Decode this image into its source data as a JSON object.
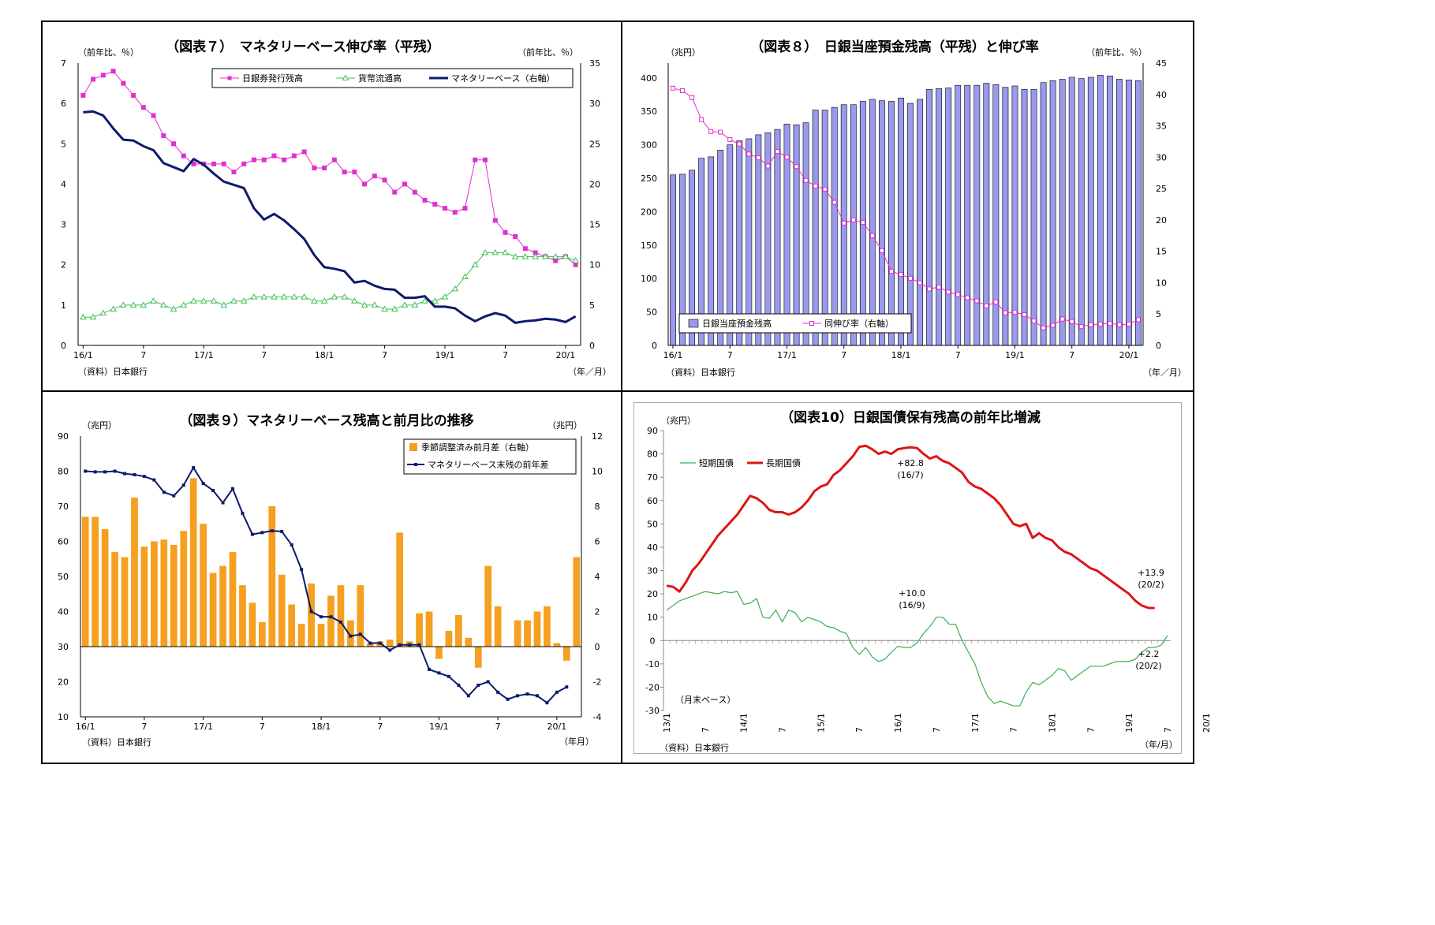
{
  "chart_data": [
    {
      "id": "fig7",
      "type": "line",
      "title": "（図表７）　マネタリーベース伸び率（平残）",
      "left_unit": "（前年比、％）",
      "right_unit": "（前年比、％）",
      "source": "（資料）日本銀行",
      "x_unit": "（年／月）",
      "x_tick_labels": [
        "16/1",
        "7",
        "17/1",
        "7",
        "18/1",
        "7",
        "19/1",
        "7",
        "20/1"
      ],
      "y_left_ticks": [
        "0",
        "1",
        "2",
        "3",
        "4",
        "5",
        "6",
        "7"
      ],
      "y_right_ticks": [
        "0",
        "5",
        "10",
        "15",
        "20",
        "25",
        "30",
        "35"
      ],
      "ylim_left": [
        0,
        7
      ],
      "ylim_right": [
        0,
        35
      ],
      "legend_position": "top-right",
      "series": [
        {
          "name": "日銀券発行残高",
          "axis": "left",
          "color": "#e030d0",
          "marker": "square",
          "values": [
            6.2,
            6.6,
            6.7,
            6.8,
            6.5,
            6.2,
            5.9,
            5.7,
            5.2,
            5.0,
            4.7,
            4.5,
            4.5,
            4.5,
            4.5,
            4.3,
            4.5,
            4.6,
            4.6,
            4.7,
            4.6,
            4.7,
            4.8,
            4.4,
            4.4,
            4.6,
            4.3,
            4.3,
            4.0,
            4.2,
            4.1,
            3.8,
            4.0,
            3.8,
            3.6,
            3.5,
            3.4,
            3.3,
            3.4,
            4.6,
            4.6,
            3.1,
            2.8,
            2.7,
            2.4,
            2.3,
            2.2,
            2.1,
            2.2,
            2.0
          ]
        },
        {
          "name": "貨幣流通高",
          "axis": "left",
          "color": "#3cc050",
          "marker": "triangle",
          "values": [
            0.7,
            0.7,
            0.8,
            0.9,
            1.0,
            1.0,
            1.0,
            1.1,
            1.0,
            0.9,
            1.0,
            1.1,
            1.1,
            1.1,
            1.0,
            1.1,
            1.1,
            1.2,
            1.2,
            1.2,
            1.2,
            1.2,
            1.2,
            1.1,
            1.1,
            1.2,
            1.2,
            1.1,
            1.0,
            1.0,
            0.9,
            0.9,
            1.0,
            1.0,
            1.1,
            1.1,
            1.2,
            1.4,
            1.7,
            2.0,
            2.3,
            2.3,
            2.3,
            2.2,
            2.2,
            2.2,
            2.2,
            2.2,
            2.2,
            2.1
          ]
        },
        {
          "name": "マネタリーベース（右軸）",
          "axis": "right",
          "color": "#0d1a6e",
          "marker": "none",
          "values": [
            28.9,
            29.0,
            28.5,
            26.9,
            25.5,
            25.4,
            24.7,
            24.2,
            22.6,
            22.1,
            21.6,
            23.1,
            22.4,
            21.3,
            20.3,
            19.9,
            19.5,
            17.0,
            15.6,
            16.3,
            15.5,
            14.4,
            13.2,
            11.2,
            9.7,
            9.5,
            9.2,
            7.8,
            8.0,
            7.4,
            7.0,
            6.9,
            5.9,
            5.9,
            6.1,
            4.8,
            4.8,
            4.6,
            3.7,
            3.0,
            3.6,
            4.0,
            3.7,
            2.8,
            3.0,
            3.1,
            3.3,
            3.2,
            2.9,
            3.6
          ]
        }
      ]
    },
    {
      "id": "fig8",
      "type": "bar",
      "title": "（図表８）　日銀当座預金残高（平残）と伸び率",
      "left_unit": "（兆円）",
      "right_unit": "（前年比、％）",
      "source": "（資料）日本銀行",
      "x_unit": "（年／月）",
      "x_tick_labels": [
        "16/1",
        "7",
        "17/1",
        "7",
        "18/1",
        "7",
        "19/1",
        "7",
        "20/1"
      ],
      "y_left_ticks": [
        "0",
        "50",
        "100",
        "150",
        "200",
        "250",
        "300",
        "350",
        "400"
      ],
      "y_right_ticks": [
        "0",
        "5",
        "10",
        "15",
        "20",
        "25",
        "30",
        "35",
        "40",
        "45"
      ],
      "ylim_left": [
        0,
        422.2
      ],
      "ylim_right": [
        0,
        45
      ],
      "legend_position": "bottom-left",
      "series": [
        {
          "name": "日銀当座預金残高",
          "axis": "left",
          "type": "bar",
          "color": "#9999ee",
          "values": [
            255,
            256,
            262,
            280,
            282,
            292,
            300,
            306,
            309,
            315,
            318,
            323,
            331,
            330,
            333,
            352,
            352,
            356,
            360,
            360,
            365,
            368,
            366,
            365,
            370,
            362,
            368,
            383,
            384,
            385,
            389,
            389,
            389,
            392,
            390,
            386,
            388,
            383,
            383,
            393,
            396,
            398,
            401,
            399,
            401,
            404,
            403,
            398,
            397,
            396
          ]
        },
        {
          "name": "同伸び率（右軸）",
          "axis": "right",
          "type": "line",
          "color": "#e030d0",
          "marker": "square",
          "values": [
            41.0,
            40.6,
            39.5,
            36.0,
            34.1,
            34.0,
            32.8,
            32.1,
            30.5,
            29.9,
            28.6,
            30.9,
            30.0,
            28.5,
            26.3,
            25.4,
            24.9,
            22.8,
            19.5,
            20.0,
            19.6,
            17.5,
            15.1,
            11.8,
            11.3,
            10.7,
            10.0,
            9.0,
            9.3,
            8.5,
            8.1,
            7.6,
            7.1,
            6.3,
            6.9,
            5.2,
            5.3,
            4.9,
            3.9,
            2.8,
            3.2,
            4.2,
            3.8,
            3.0,
            3.3,
            3.4,
            3.5,
            3.3,
            3.4,
            4.1
          ]
        }
      ]
    },
    {
      "id": "fig9",
      "type": "bar",
      "title": "（図表９）マネタリーベース残高と前月比の推移",
      "left_unit": "（兆円）",
      "right_unit": "（兆円）",
      "source": "（資料）日本銀行",
      "x_unit": "（年月）",
      "x_tick_labels": [
        "16/1",
        "7",
        "17/1",
        "7",
        "18/1",
        "7",
        "19/1",
        "7",
        "20/1"
      ],
      "y_left_ticks": [
        "10",
        "20",
        "30",
        "40",
        "50",
        "60",
        "70",
        "80",
        "90"
      ],
      "y_right_ticks": [
        "-4",
        "-2",
        "0",
        "2",
        "4",
        "6",
        "8",
        "10",
        "12"
      ],
      "ylim_left": [
        10,
        90
      ],
      "ylim_right": [
        -4,
        12
      ],
      "legend_position": "top-right",
      "series": [
        {
          "name": "季節調整済み前月差（右軸）",
          "axis": "right",
          "type": "bar",
          "color": "#f5a020",
          "values": [
            7.4,
            7.4,
            6.7,
            5.4,
            5.1,
            8.5,
            5.7,
            6.0,
            6.1,
            5.8,
            6.6,
            9.6,
            7.0,
            4.2,
            4.6,
            5.4,
            3.5,
            2.5,
            1.4,
            8.0,
            4.1,
            2.4,
            1.3,
            3.6,
            1.3,
            2.9,
            3.5,
            1.5,
            3.5,
            0.2,
            0.3,
            0.4,
            6.5,
            0.3,
            1.9,
            2.0,
            -0.7,
            0.9,
            1.8,
            0.5,
            -1.2,
            4.6,
            2.3,
            0.0,
            1.5,
            1.5,
            2.0,
            2.3,
            0.2,
            -0.8,
            5.1
          ]
        },
        {
          "name": "マネタリーベース末残の前年差",
          "axis": "left",
          "type": "line",
          "color": "#0d1a6e",
          "marker": "square",
          "values": [
            80,
            79.8,
            79.8,
            80,
            79.3,
            79,
            78.5,
            77.5,
            74,
            73,
            76,
            81,
            76.5,
            74.5,
            71,
            75,
            68,
            62,
            62.5,
            63,
            62.8,
            59,
            52,
            40,
            38.5,
            38.5,
            37,
            33,
            33.5,
            31,
            31,
            29,
            30.5,
            30.5,
            30.5,
            23.5,
            22.5,
            21.5,
            19,
            16,
            19,
            20,
            17,
            15,
            16,
            16.5,
            16,
            14,
            17,
            18.5
          ]
        }
      ]
    },
    {
      "id": "fig10",
      "type": "line",
      "title": "（図表10）日銀国債保有残高の前年比増減",
      "left_unit": "（兆円）",
      "source": "（資料）日本銀行",
      "x_unit": "（年/月）",
      "note": "（月末ベース）",
      "x_tick_labels": [
        "13/1",
        "7",
        "14/1",
        "7",
        "15/1",
        "7",
        "16/1",
        "7",
        "17/1",
        "7",
        "18/1",
        "7",
        "19/1",
        "7",
        "20/1"
      ],
      "y_ticks": [
        "-30",
        "-20",
        "-10",
        "0",
        "10",
        "20",
        "30",
        "40",
        "50",
        "60",
        "70",
        "80",
        "90"
      ],
      "ylim": [
        -30,
        90
      ],
      "legend_position": "top-left",
      "annotations": [
        {
          "text": "+82.8",
          "sub": "(16/7)"
        },
        {
          "text": "+10.0",
          "sub": "(16/9)"
        },
        {
          "text": "+13.9",
          "sub": "(20/2)"
        },
        {
          "text": "+2.2",
          "sub": "(20/2)"
        }
      ],
      "series": [
        {
          "name": "短期国債",
          "color": "#3cb050",
          "values": [
            13,
            15,
            17,
            18,
            19,
            20,
            21,
            20.5,
            20,
            21,
            20.5,
            21,
            15.5,
            16,
            18,
            10,
            9.5,
            13,
            8,
            13,
            12,
            8,
            10,
            9,
            8,
            6,
            5.5,
            4,
            3,
            -3,
            -6,
            -3,
            -7,
            -9,
            -8,
            -5,
            -2.5,
            -3,
            -3,
            -1,
            3,
            6,
            10,
            10,
            7,
            7,
            0,
            -5,
            -10,
            -18,
            -24,
            -27,
            -26,
            -27,
            -28,
            -28,
            -22,
            -18,
            -19,
            -17,
            -15,
            -12,
            -13,
            -17,
            -15,
            -13,
            -11,
            -11,
            -11,
            -10,
            -9,
            -9,
            -9,
            -8,
            -5,
            -3,
            -3,
            -2,
            2.2
          ]
        },
        {
          "name": "長期国債",
          "color": "#dd1515",
          "values": [
            23.5,
            23,
            21,
            25,
            30,
            33,
            37,
            41,
            45,
            48,
            51,
            54,
            58,
            62,
            61,
            59,
            56,
            55,
            55,
            54,
            55,
            57,
            60,
            64,
            66,
            67,
            71,
            73,
            76,
            79,
            83,
            83.5,
            82,
            80,
            81,
            80,
            82,
            82.5,
            82.8,
            82.5,
            80,
            78,
            79,
            77,
            76,
            74,
            72,
            68,
            66,
            65,
            63,
            61,
            58,
            54,
            50,
            49,
            50,
            44,
            46,
            44,
            43,
            40,
            38,
            37,
            35,
            33,
            31,
            30,
            28,
            26,
            24,
            22,
            20,
            17,
            15,
            14,
            13.9
          ]
        }
      ]
    }
  ]
}
